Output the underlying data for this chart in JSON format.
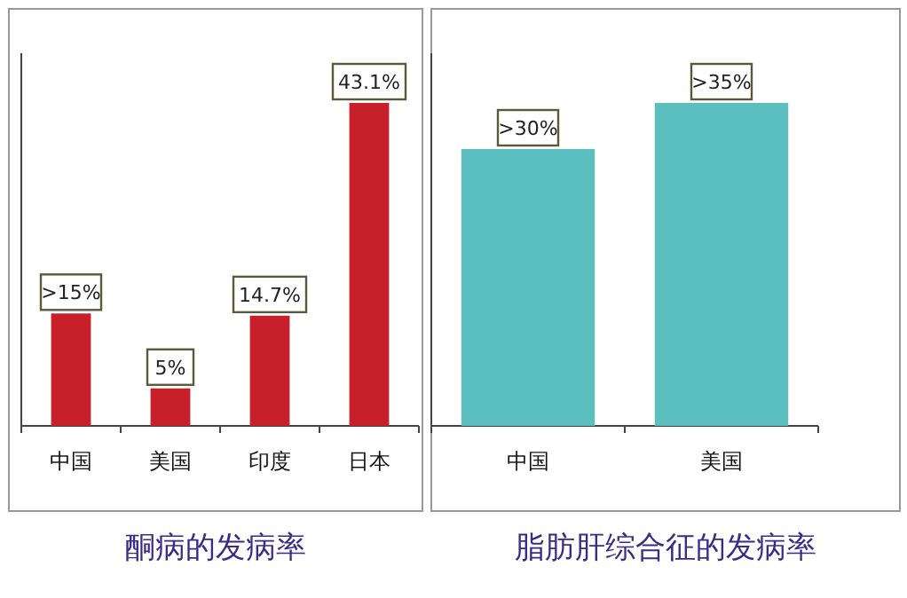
{
  "chart_data": [
    {
      "type": "bar",
      "title": "酮病的发病率",
      "categories": [
        "中国",
        "美国",
        "印度",
        "日本"
      ],
      "values": [
        15,
        5,
        14.7,
        43.1
      ],
      "value_labels": [
        ">15%",
        "5%",
        "14.7%",
        "43.1%"
      ],
      "color": "#c8202a"
    },
    {
      "type": "bar",
      "title": "脂肪肝综合征的发病率",
      "categories": [
        "中国",
        "美国"
      ],
      "values": [
        30,
        35
      ],
      "value_labels": [
        ">30%",
        ">35%"
      ],
      "color": "#5bbfc0"
    }
  ]
}
